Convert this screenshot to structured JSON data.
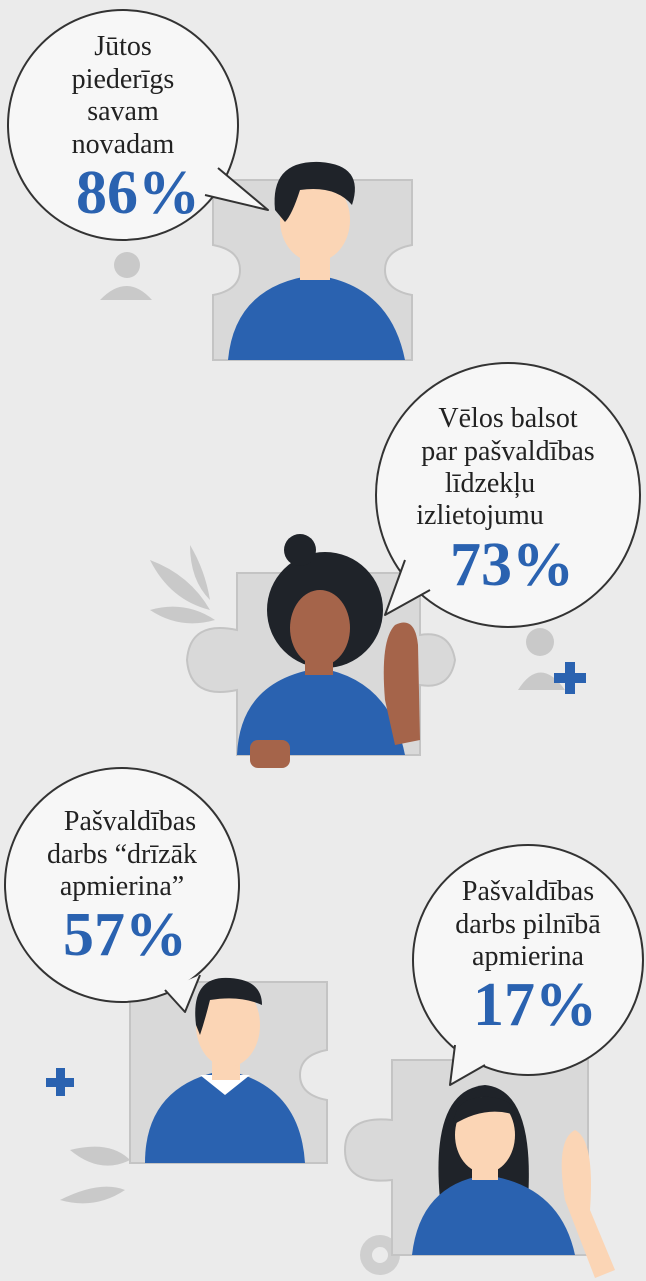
{
  "items": [
    {
      "lines": [
        "Jūtos",
        "piederīgs",
        "savam",
        "novadam"
      ],
      "percent": "86%"
    },
    {
      "lines": [
        "Vēlos balsot",
        "par pašvaldības",
        "līdzekļu",
        "izlietojumu"
      ],
      "percent": "73%"
    },
    {
      "lines": [
        "Pašvaldības",
        "darbs “drīzāk",
        "apmierina”"
      ],
      "percent": "57%"
    },
    {
      "lines": [
        "Pašvaldības",
        "darbs pilnībā",
        "apmierina"
      ],
      "percent": "17%"
    }
  ]
}
